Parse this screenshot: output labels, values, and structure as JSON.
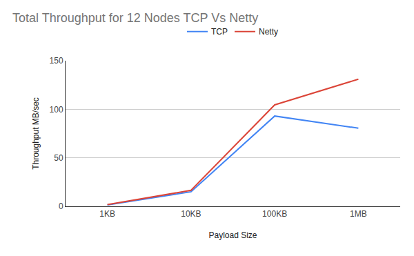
{
  "chart_data": {
    "type": "line",
    "title": "Total Throughput for 12 Nodes TCP Vs Netty",
    "x_label": "Payload Size",
    "y_label": "Throughput MB/sec",
    "categories": [
      "1KB",
      "10KB",
      "100KB",
      "1MB"
    ],
    "series": [
      {
        "name": "TCP",
        "color": "#4285f4",
        "values": [
          1.5,
          15,
          93,
          80.5
        ]
      },
      {
        "name": "Netty",
        "color": "#db4437",
        "values": [
          1.7,
          16.5,
          104.5,
          131
        ]
      }
    ],
    "ylim": [
      0,
      150
    ],
    "yticks": [
      0,
      50,
      100,
      150
    ],
    "grid": true,
    "legend": "top"
  }
}
